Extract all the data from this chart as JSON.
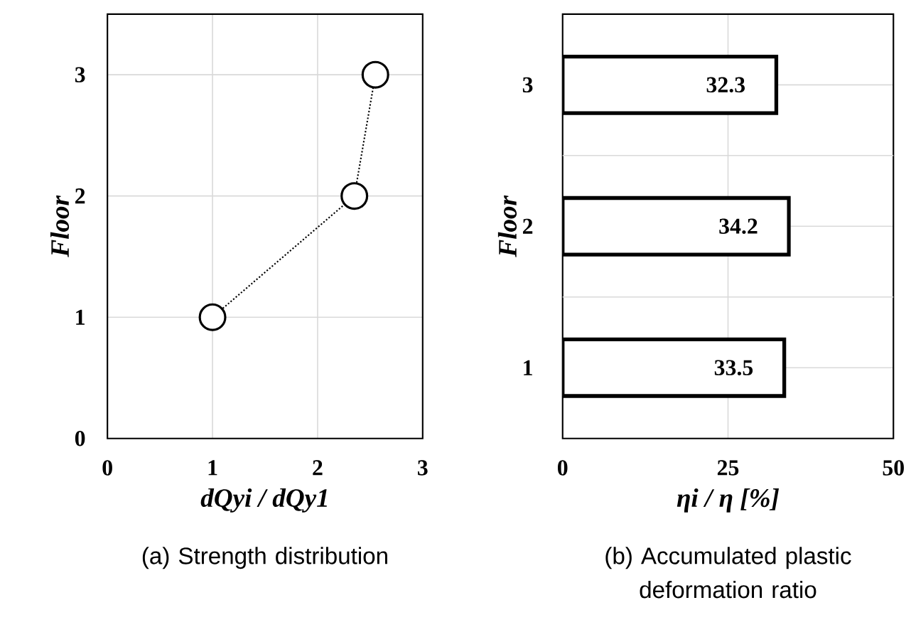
{
  "chart_data": [
    {
      "type": "line",
      "title": "(a) Strength distribution",
      "xlabel": "dQyi / dQy1",
      "ylabel": "Floor",
      "x": [
        1,
        2.35,
        2.55
      ],
      "values": [
        1,
        2,
        3
      ],
      "color": "#000000",
      "marker": "circle",
      "line_style": "dotted",
      "xlim": [
        0,
        3
      ],
      "xticks": [
        0,
        1,
        2,
        3
      ],
      "ylim": [
        0,
        3.5
      ],
      "yticks": [
        0,
        1,
        2,
        3
      ],
      "grid": true
    },
    {
      "type": "bar",
      "orientation": "horizontal",
      "title": "(b) Accumulated plastic deformation ratio",
      "xlabel": "ηi / η [%]",
      "ylabel": "Floor",
      "categories": [
        "3",
        "2",
        "1"
      ],
      "values": [
        32.3,
        34.2,
        33.5
      ],
      "color": "#ffffff",
      "data_labels": true,
      "xlim": [
        0,
        50
      ],
      "xticks": [
        0,
        25,
        50
      ],
      "grid": true
    }
  ]
}
